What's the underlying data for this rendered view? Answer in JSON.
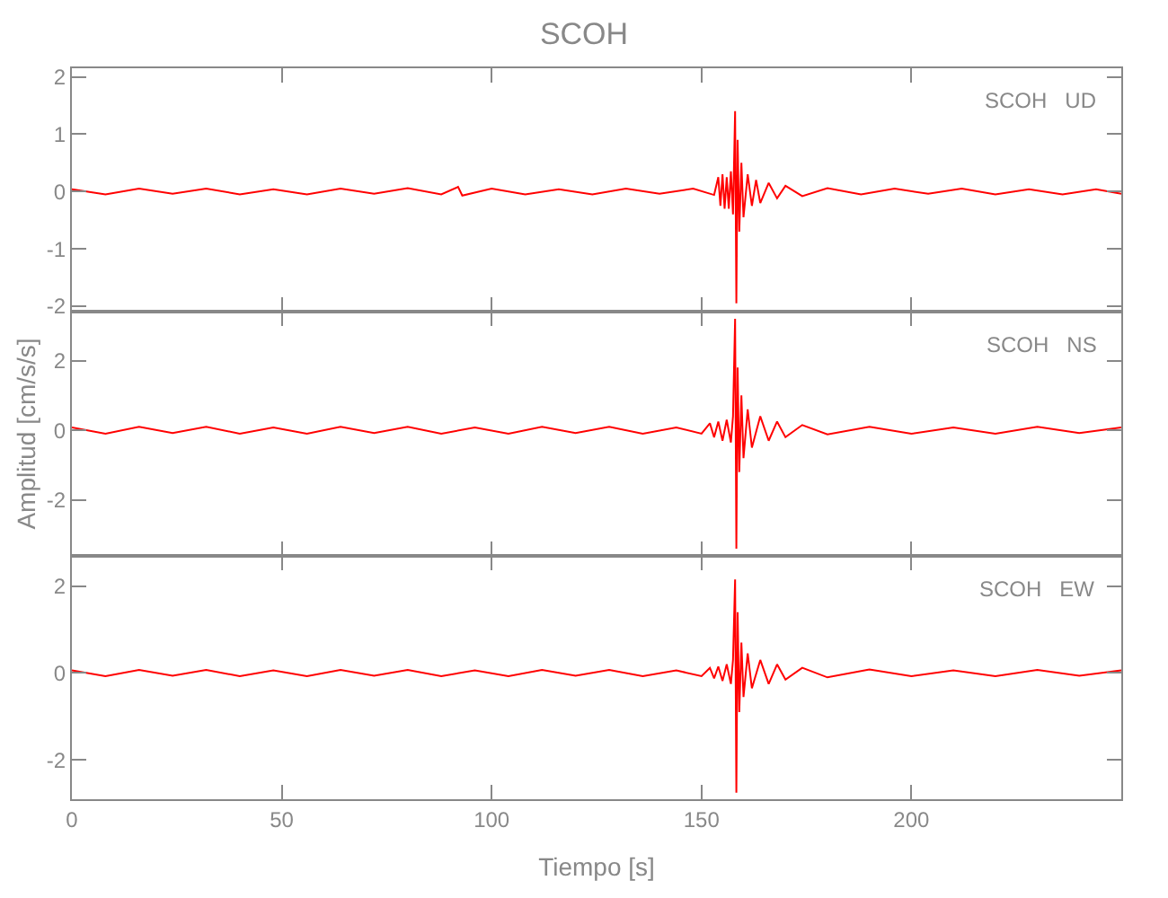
{
  "chart_data": [
    {
      "type": "line",
      "title": "SCOH",
      "annotations": [
        "SCOH   UD"
      ],
      "tick_labels": "y",
      "xlim": [
        0,
        250
      ],
      "xticks": [
        0,
        50,
        100,
        150,
        200
      ],
      "ylim": [
        -2.1,
        2.15
      ],
      "yticks": [
        -2,
        -1,
        0,
        1,
        2
      ],
      "x": [
        0,
        8,
        16,
        24,
        32,
        40,
        48,
        56,
        64,
        72,
        80,
        88,
        92,
        93,
        100,
        108,
        116,
        124,
        132,
        140,
        148,
        153,
        154,
        154.5,
        155,
        155.5,
        156,
        156.5,
        157,
        157.5,
        158,
        158.3,
        158.6,
        159,
        159.5,
        160,
        161,
        162,
        163,
        164,
        166,
        168,
        170,
        174,
        180,
        188,
        196,
        204,
        212,
        220,
        228,
        236,
        244,
        250
      ],
      "series": [
        {
          "color": "#ff0000",
          "values": [
            0.04,
            -0.05,
            0.05,
            -0.04,
            0.05,
            -0.05,
            0.04,
            -0.05,
            0.05,
            -0.04,
            0.06,
            -0.05,
            0.08,
            -0.07,
            0.05,
            -0.05,
            0.04,
            -0.05,
            0.05,
            -0.04,
            0.05,
            -0.06,
            0.25,
            -0.25,
            0.3,
            -0.3,
            0.25,
            -0.3,
            0.35,
            -0.4,
            1.4,
            -1.95,
            0.9,
            -0.7,
            0.5,
            -0.45,
            0.3,
            -0.25,
            0.2,
            -0.2,
            0.15,
            -0.12,
            0.1,
            -0.08,
            0.06,
            -0.05,
            0.05,
            -0.04,
            0.05,
            -0.05,
            0.04,
            -0.05,
            0.04,
            -0.04
          ]
        }
      ]
    },
    {
      "type": "line",
      "ylabel": "Amplitud [cm/s/s]",
      "annotations": [
        "SCOH   NS"
      ],
      "tick_labels": "y",
      "xlim": [
        0,
        250
      ],
      "xticks": [
        0,
        50,
        100,
        150,
        200
      ],
      "ylim": [
        -3.6,
        3.4
      ],
      "yticks": [
        -2,
        0,
        2
      ],
      "x": [
        0,
        8,
        16,
        24,
        32,
        40,
        48,
        56,
        64,
        72,
        80,
        88,
        96,
        104,
        112,
        120,
        128,
        136,
        144,
        150,
        152,
        153,
        154,
        155,
        156,
        157,
        157.5,
        158,
        158.3,
        158.6,
        159,
        159.5,
        160,
        161,
        162,
        164,
        166,
        168,
        170,
        174,
        180,
        190,
        200,
        210,
        220,
        230,
        240,
        250
      ],
      "series": [
        {
          "color": "#ff0000",
          "values": [
            0.08,
            -0.1,
            0.1,
            -0.08,
            0.1,
            -0.1,
            0.08,
            -0.1,
            0.1,
            -0.08,
            0.1,
            -0.1,
            0.08,
            -0.1,
            0.1,
            -0.08,
            0.1,
            -0.1,
            0.08,
            -0.1,
            0.2,
            -0.2,
            0.25,
            -0.3,
            0.3,
            -0.35,
            0.4,
            3.2,
            -3.4,
            1.8,
            -1.2,
            1.0,
            -0.8,
            0.6,
            -0.5,
            0.4,
            -0.3,
            0.25,
            -0.2,
            0.15,
            -0.12,
            0.1,
            -0.1,
            0.08,
            -0.1,
            0.1,
            -0.08,
            0.08
          ]
        }
      ]
    },
    {
      "type": "line",
      "xlabel": "Tiempo [s]",
      "annotations": [
        "SCOH   EW"
      ],
      "xlim": [
        0,
        250
      ],
      "xticks": [
        0,
        50,
        100,
        150,
        200
      ],
      "ylim": [
        -2.9,
        2.7
      ],
      "yticks": [
        -2,
        0,
        2
      ],
      "x": [
        0,
        8,
        16,
        24,
        32,
        40,
        48,
        56,
        64,
        72,
        80,
        88,
        96,
        104,
        112,
        120,
        128,
        136,
        144,
        150,
        152,
        153,
        154,
        155,
        156,
        157,
        157.5,
        158,
        158.3,
        158.6,
        159,
        159.5,
        160,
        161,
        162,
        164,
        166,
        168,
        170,
        174,
        180,
        190,
        200,
        210,
        220,
        230,
        240,
        250
      ],
      "series": [
        {
          "color": "#ff0000",
          "values": [
            0.06,
            -0.07,
            0.07,
            -0.06,
            0.07,
            -0.07,
            0.06,
            -0.07,
            0.07,
            -0.06,
            0.07,
            -0.07,
            0.06,
            -0.07,
            0.07,
            -0.06,
            0.07,
            -0.07,
            0.06,
            -0.07,
            0.12,
            -0.12,
            0.15,
            -0.18,
            0.2,
            -0.25,
            0.3,
            2.15,
            -2.75,
            1.4,
            -0.9,
            0.7,
            -0.55,
            0.45,
            -0.35,
            0.3,
            -0.25,
            0.2,
            -0.15,
            0.12,
            -0.1,
            0.08,
            -0.07,
            0.06,
            -0.07,
            0.07,
            -0.06,
            0.06
          ]
        }
      ]
    }
  ]
}
